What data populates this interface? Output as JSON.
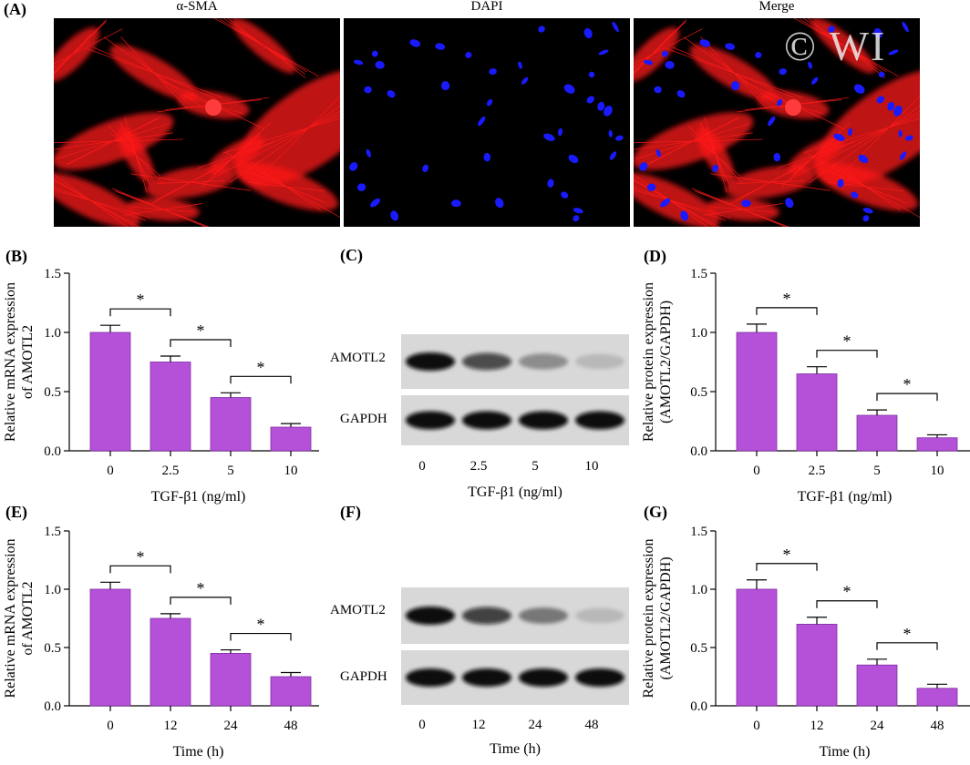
{
  "panelA": {
    "label": "(A)",
    "titles": [
      "α-SMA",
      "DAPI",
      "Merge"
    ],
    "watermark": "© WI"
  },
  "colors": {
    "bar": "#b551d9",
    "bar_border": "#7f2fa0",
    "sma": "#ff1a1a",
    "dapi": "#1a1aff"
  },
  "chart_data": [
    {
      "id": "B",
      "label": "(B)",
      "type": "bar",
      "categories": [
        "0",
        "2.5",
        "5",
        "10"
      ],
      "values": [
        1.0,
        0.75,
        0.45,
        0.2
      ],
      "errors": [
        0.06,
        0.05,
        0.04,
        0.03
      ],
      "ylim": [
        0,
        1.5
      ],
      "yticks": [
        "0.0",
        "0.5",
        "1.0",
        "1.5"
      ],
      "ylabel": [
        "Relative mRNA expression",
        "of AMOTL2"
      ],
      "xlabel": "TGF-β1 (ng/ml)",
      "significance": [
        {
          "pair": [
            0,
            1
          ],
          "label": "*"
        },
        {
          "pair": [
            1,
            2
          ],
          "label": "*"
        },
        {
          "pair": [
            2,
            3
          ],
          "label": "*"
        }
      ]
    },
    {
      "id": "D",
      "label": "(D)",
      "type": "bar",
      "categories": [
        "0",
        "2.5",
        "5",
        "10"
      ],
      "values": [
        1.0,
        0.65,
        0.3,
        0.11
      ],
      "errors": [
        0.07,
        0.06,
        0.045,
        0.025
      ],
      "ylim": [
        0,
        1.5
      ],
      "yticks": [
        "0.0",
        "0.5",
        "1.0",
        "1.5"
      ],
      "ylabel": [
        "Relative protein expression",
        "(AMOTL2/GAPDH)"
      ],
      "xlabel": "TGF-β1 (ng/ml)",
      "significance": [
        {
          "pair": [
            0,
            1
          ],
          "label": "*"
        },
        {
          "pair": [
            1,
            2
          ],
          "label": "*"
        },
        {
          "pair": [
            2,
            3
          ],
          "label": "*"
        }
      ]
    },
    {
      "id": "E",
      "label": "(E)",
      "type": "bar",
      "categories": [
        "0",
        "12",
        "24",
        "48"
      ],
      "values": [
        1.0,
        0.75,
        0.45,
        0.25
      ],
      "errors": [
        0.06,
        0.04,
        0.03,
        0.035
      ],
      "ylim": [
        0,
        1.5
      ],
      "yticks": [
        "0.0",
        "0.5",
        "1.0",
        "1.5"
      ],
      "ylabel": [
        "Relative mRNA expression",
        "of AMOTL2"
      ],
      "xlabel": "Time (h)",
      "significance": [
        {
          "pair": [
            0,
            1
          ],
          "label": "*"
        },
        {
          "pair": [
            1,
            2
          ],
          "label": "*"
        },
        {
          "pair": [
            2,
            3
          ],
          "label": "*"
        }
      ]
    },
    {
      "id": "G",
      "label": "(G)",
      "type": "bar",
      "categories": [
        "0",
        "12",
        "24",
        "48"
      ],
      "values": [
        1.0,
        0.7,
        0.35,
        0.15
      ],
      "errors": [
        0.08,
        0.06,
        0.05,
        0.035
      ],
      "ylim": [
        0,
        1.5
      ],
      "yticks": [
        "0.0",
        "0.5",
        "1.0",
        "1.5"
      ],
      "ylabel": [
        "Relative protein expression",
        "(AMOTL2/GAPDH)"
      ],
      "xlabel": "Time (h)",
      "significance": [
        {
          "pair": [
            0,
            1
          ],
          "label": "*"
        },
        {
          "pair": [
            1,
            2
          ],
          "label": "*"
        },
        {
          "pair": [
            2,
            3
          ],
          "label": "*"
        }
      ]
    }
  ],
  "blots": [
    {
      "id": "C",
      "label": "(C)",
      "bands": [
        "AMOTL2",
        "GAPDH"
      ],
      "lanes": [
        "0",
        "2.5",
        "5",
        "10"
      ],
      "amotl2_intensity": [
        1.0,
        0.7,
        0.35,
        0.15
      ],
      "xlabel": "TGF-β1 (ng/ml)"
    },
    {
      "id": "F",
      "label": "(F)",
      "bands": [
        "AMOTL2",
        "GAPDH"
      ],
      "lanes": [
        "0",
        "12",
        "24",
        "48"
      ],
      "amotl2_intensity": [
        1.0,
        0.75,
        0.45,
        0.15
      ],
      "xlabel": "Time (h)"
    }
  ]
}
